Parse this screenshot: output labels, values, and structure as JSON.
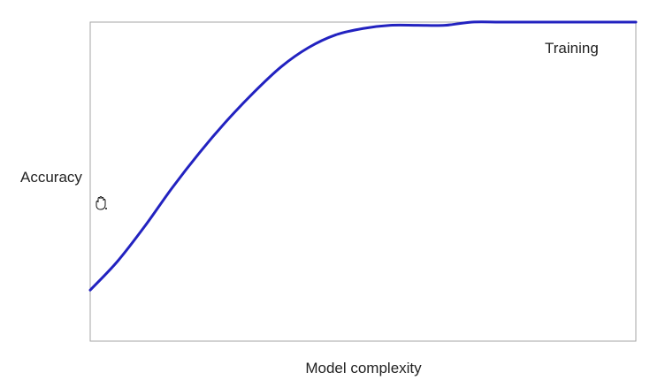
{
  "chart_data": {
    "type": "line",
    "title": "",
    "xlabel": "Model complexity",
    "ylabel": "Accuracy",
    "xlim": [
      0,
      1
    ],
    "ylim": [
      0,
      1
    ],
    "grid": false,
    "x_ticks_shown": false,
    "y_ticks_shown": false,
    "series": [
      {
        "name": "Training",
        "color": "#2222c0",
        "x": [
          0.0,
          0.05,
          0.1,
          0.15,
          0.2,
          0.25,
          0.3,
          0.35,
          0.4,
          0.45,
          0.5,
          0.55,
          0.6,
          0.65,
          0.7,
          0.75,
          0.8,
          0.85,
          0.9,
          0.95,
          1.0
        ],
        "y": [
          0.16,
          0.25,
          0.36,
          0.48,
          0.59,
          0.69,
          0.78,
          0.86,
          0.92,
          0.96,
          0.98,
          0.99,
          0.99,
          0.99,
          1.0,
          1.0,
          1.0,
          1.0,
          1.0,
          1.0,
          1.0
        ]
      }
    ]
  },
  "cursor": {
    "icon": "hand-cursor-icon"
  }
}
